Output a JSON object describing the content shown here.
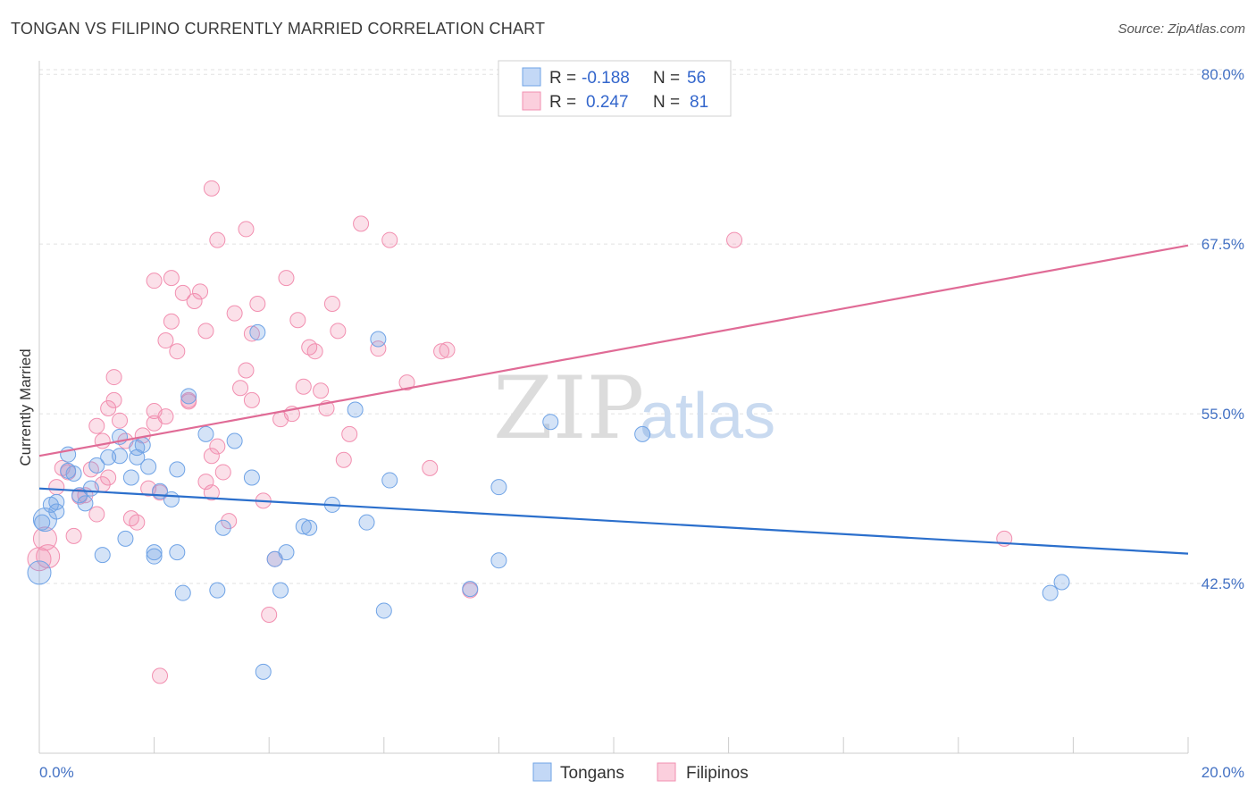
{
  "title": "TONGAN VS FILIPINO CURRENTLY MARRIED CORRELATION CHART",
  "source": "Source: ZipAtlas.com",
  "watermark": {
    "zip": "ZIP",
    "atlas": "atlas"
  },
  "legend": {
    "rows": [
      {
        "r_label": "R =",
        "r_value": "-0.188",
        "n_label": "N =",
        "n_value": "56"
      },
      {
        "r_label": "R =",
        "r_value": "0.247",
        "n_label": "N =",
        "n_value": "81"
      }
    ]
  },
  "colors": {
    "tongans": "#6fa3e6",
    "filipinos": "#f28fb0",
    "tongans_line": "#2b6fcc",
    "filipinos_line": "#e06b96"
  },
  "chart_data": {
    "type": "scatter",
    "xlabel": "",
    "ylabel": "Currently Married",
    "xlim": [
      0,
      20
    ],
    "ylim": [
      30,
      81
    ],
    "x_tick_labels": [
      "0.0%",
      "20.0%"
    ],
    "y_ticks": [
      42.5,
      55.0,
      67.5,
      80.0
    ],
    "y_tick_labels": [
      "42.5%",
      "55.0%",
      "67.5%",
      "80.0%"
    ],
    "grid": true,
    "legend_position": "top-center",
    "series": [
      {
        "name": "Tongans",
        "trend": {
          "x": [
            0,
            20
          ],
          "y": [
            49.5,
            44.7
          ]
        },
        "points": [
          [
            0.0,
            43.3
          ],
          [
            0.1,
            47.2
          ],
          [
            0.2,
            48.3
          ],
          [
            0.3,
            47.8
          ],
          [
            0.3,
            48.5
          ],
          [
            0.5,
            52.0
          ],
          [
            0.5,
            50.8
          ],
          [
            0.6,
            50.6
          ],
          [
            0.7,
            49.0
          ],
          [
            0.8,
            48.4
          ],
          [
            0.9,
            49.5
          ],
          [
            1.0,
            51.2
          ],
          [
            1.1,
            44.6
          ],
          [
            1.2,
            51.8
          ],
          [
            1.4,
            53.3
          ],
          [
            1.4,
            51.9
          ],
          [
            1.5,
            45.8
          ],
          [
            1.6,
            50.3
          ],
          [
            1.7,
            52.5
          ],
          [
            1.7,
            51.8
          ],
          [
            1.8,
            52.7
          ],
          [
            1.9,
            51.1
          ],
          [
            2.0,
            44.5
          ],
          [
            2.0,
            44.8
          ],
          [
            2.1,
            49.3
          ],
          [
            2.3,
            48.7
          ],
          [
            2.4,
            50.9
          ],
          [
            2.4,
            44.8
          ],
          [
            2.5,
            41.8
          ],
          [
            2.6,
            56.3
          ],
          [
            2.9,
            53.5
          ],
          [
            3.1,
            42.0
          ],
          [
            3.2,
            46.6
          ],
          [
            3.4,
            53.0
          ],
          [
            3.7,
            50.3
          ],
          [
            3.8,
            61.0
          ],
          [
            3.9,
            36.0
          ],
          [
            4.1,
            44.3
          ],
          [
            4.2,
            42.0
          ],
          [
            4.3,
            44.8
          ],
          [
            4.6,
            46.7
          ],
          [
            4.7,
            46.6
          ],
          [
            5.1,
            48.3
          ],
          [
            5.5,
            55.3
          ],
          [
            5.7,
            47.0
          ],
          [
            5.9,
            60.5
          ],
          [
            6.0,
            40.5
          ],
          [
            6.1,
            50.1
          ],
          [
            7.5,
            42.1
          ],
          [
            8.0,
            44.2
          ],
          [
            8.0,
            49.6
          ],
          [
            8.9,
            54.4
          ],
          [
            10.5,
            53.5
          ],
          [
            17.6,
            41.8
          ],
          [
            17.8,
            42.6
          ],
          [
            0.05,
            47.0
          ]
        ]
      },
      {
        "name": "Filipinos",
        "trend": {
          "x": [
            0,
            20
          ],
          "y": [
            51.9,
            67.4
          ]
        },
        "points": [
          [
            0.0,
            44.3
          ],
          [
            0.1,
            45.8
          ],
          [
            0.15,
            44.5
          ],
          [
            0.3,
            49.6
          ],
          [
            0.4,
            51.0
          ],
          [
            0.5,
            50.7
          ],
          [
            0.6,
            46.0
          ],
          [
            0.7,
            48.9
          ],
          [
            0.8,
            49.0
          ],
          [
            0.9,
            50.9
          ],
          [
            1.0,
            54.1
          ],
          [
            1.1,
            53.0
          ],
          [
            1.2,
            50.3
          ],
          [
            1.2,
            55.4
          ],
          [
            1.3,
            57.7
          ],
          [
            1.3,
            56.0
          ],
          [
            1.4,
            54.5
          ],
          [
            1.5,
            53.0
          ],
          [
            1.6,
            47.3
          ],
          [
            1.7,
            47.0
          ],
          [
            1.8,
            53.4
          ],
          [
            1.9,
            49.5
          ],
          [
            2.0,
            55.2
          ],
          [
            2.0,
            54.3
          ],
          [
            2.1,
            49.2
          ],
          [
            2.2,
            54.8
          ],
          [
            2.2,
            60.4
          ],
          [
            2.3,
            61.8
          ],
          [
            2.4,
            59.6
          ],
          [
            2.5,
            63.9
          ],
          [
            2.6,
            56.0
          ],
          [
            2.7,
            63.3
          ],
          [
            2.8,
            64.0
          ],
          [
            2.9,
            61.1
          ],
          [
            3.0,
            51.9
          ],
          [
            3.0,
            49.2
          ],
          [
            3.1,
            52.6
          ],
          [
            3.2,
            50.7
          ],
          [
            3.3,
            47.1
          ],
          [
            3.4,
            62.4
          ],
          [
            3.5,
            56.9
          ],
          [
            3.6,
            58.2
          ],
          [
            3.7,
            56.0
          ],
          [
            3.7,
            60.9
          ],
          [
            3.8,
            63.1
          ],
          [
            3.9,
            48.6
          ],
          [
            4.0,
            40.2
          ],
          [
            4.1,
            44.3
          ],
          [
            4.2,
            54.6
          ],
          [
            4.3,
            65.0
          ],
          [
            4.4,
            55.0
          ],
          [
            4.5,
            61.9
          ],
          [
            4.6,
            57.0
          ],
          [
            4.7,
            59.9
          ],
          [
            4.8,
            59.6
          ],
          [
            4.9,
            56.7
          ],
          [
            5.0,
            55.4
          ],
          [
            5.1,
            63.1
          ],
          [
            5.2,
            61.1
          ],
          [
            5.3,
            51.6
          ],
          [
            5.4,
            53.5
          ],
          [
            5.6,
            69.0
          ],
          [
            5.9,
            59.8
          ],
          [
            6.1,
            67.8
          ],
          [
            6.4,
            57.3
          ],
          [
            6.8,
            51.0
          ],
          [
            7.0,
            59.6
          ],
          [
            7.1,
            59.7
          ],
          [
            7.5,
            42.0
          ],
          [
            2.6,
            55.9
          ],
          [
            2.9,
            50.0
          ],
          [
            1.0,
            47.6
          ],
          [
            3.0,
            71.6
          ],
          [
            3.1,
            67.8
          ],
          [
            2.0,
            64.8
          ],
          [
            2.3,
            65.0
          ],
          [
            3.6,
            68.6
          ],
          [
            12.1,
            67.8
          ],
          [
            16.8,
            45.8
          ],
          [
            1.1,
            49.8
          ],
          [
            2.1,
            35.7
          ]
        ]
      }
    ]
  },
  "bottom_legend": {
    "items": [
      {
        "label": "Tongans"
      },
      {
        "label": "Filipinos"
      }
    ]
  }
}
